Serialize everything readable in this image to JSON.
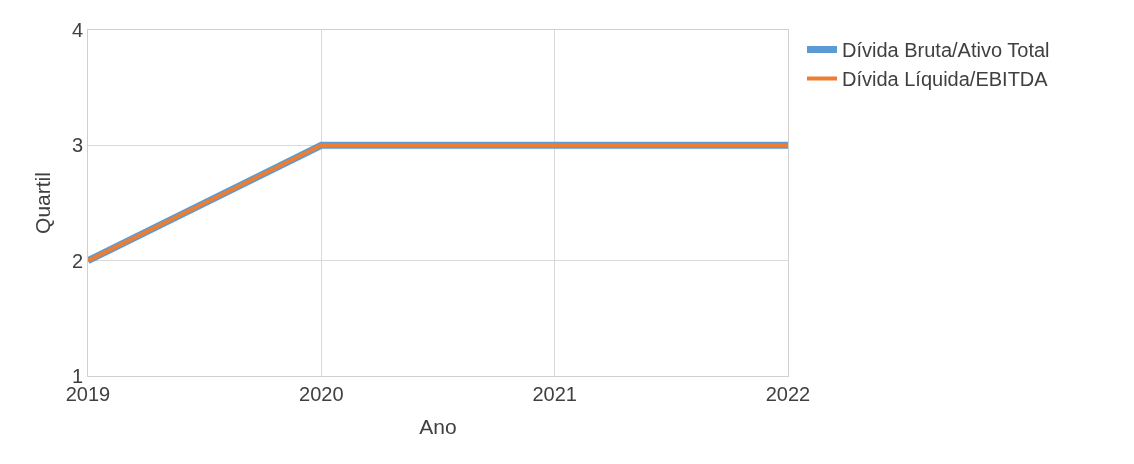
{
  "chart_data": {
    "type": "line",
    "xlabel": "Ano",
    "ylabel": "Quartil",
    "x": [
      2019,
      2020,
      2021,
      2022
    ],
    "series": [
      {
        "name": "Dívida Bruta/Ativo Total",
        "color": "#5b9bd5",
        "values": [
          2,
          3,
          3,
          3
        ]
      },
      {
        "name": "Dívida Líquida/EBITDA",
        "color": "#ed7d31",
        "values": [
          2,
          3,
          3,
          3
        ]
      }
    ],
    "xlim": [
      2019,
      2022
    ],
    "xticks": [
      2019,
      2020,
      2021,
      2022
    ],
    "ylim": [
      1,
      4
    ],
    "yticks": [
      1,
      2,
      3,
      4
    ],
    "grid": true,
    "legend": "top right",
    "marker": "none",
    "line_style": "solid"
  }
}
